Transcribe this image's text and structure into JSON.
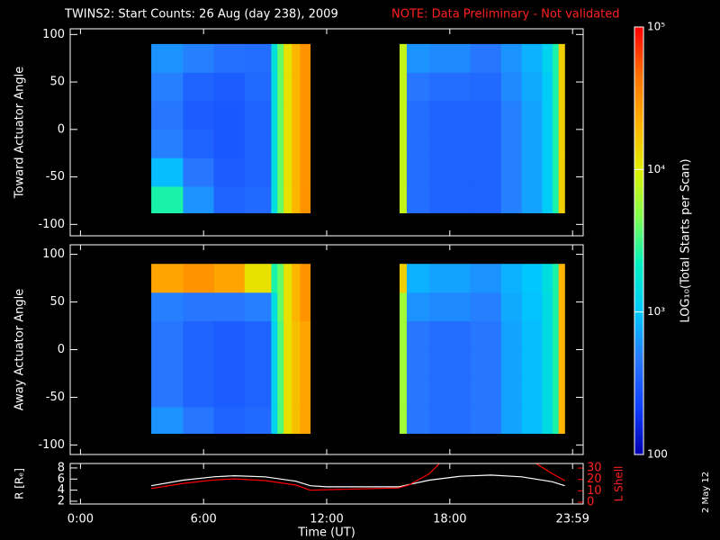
{
  "title": "TWINS2: Start Counts: 26 Aug (day 238), 2009",
  "note": "NOTE: Data Preliminary - Not validated",
  "date_stamp": "2 May 12",
  "xlabel": "Time (UT)",
  "colorbar": {
    "label": "LOG₁₀(Total Starts per Scan)",
    "zlim": [
      100,
      100000
    ],
    "log": true,
    "zticks": [
      {
        "value": 100000,
        "label": "10⁵"
      },
      {
        "value": 10000,
        "label": "10⁴"
      },
      {
        "value": 1000,
        "label": "10³"
      },
      100
    ],
    "colors": [
      "#0000b0",
      "#1040ff",
      "#2878ff",
      "#00c8ff",
      "#00f0c0",
      "#80ff50",
      "#e0f000",
      "#ffb000",
      "#ff7000",
      "#ff0000"
    ]
  },
  "chart_data": [
    {
      "type": "heatmap",
      "ylabel": "Toward Actuator Angle",
      "xlim": [
        -0.5,
        24.5
      ],
      "xticks": [
        {
          "value": 0,
          "label": "0:00"
        },
        {
          "value": 6,
          "label": "6:00"
        },
        {
          "value": 12,
          "label": "12:00"
        },
        {
          "value": 18,
          "label": "18:00"
        },
        {
          "value": 23.983,
          "label": "23:59"
        }
      ],
      "ylim": [
        -112,
        106
      ],
      "yticks": [
        -100,
        -50,
        0,
        50,
        100
      ],
      "x_bins": [
        3.45,
        5,
        6.5,
        8,
        9.3,
        9.6,
        9.9,
        10.3,
        10.7,
        11.2,
        15.55,
        15.9,
        17,
        19,
        20.5,
        21.5,
        22.5,
        23,
        23.3,
        23.6
      ],
      "y_bins": [
        -88,
        -60,
        -30,
        0,
        30,
        60,
        90
      ],
      "values": [
        [
          2500,
          600,
          350,
          380,
          1500,
          4000,
          12000,
          20000,
          30000,
          null,
          8000,
          400,
          350,
          350,
          500,
          700,
          1100,
          2500,
          15000
        ],
        [
          900,
          450,
          320,
          350,
          1500,
          4000,
          12000,
          20000,
          30000,
          null,
          8000,
          400,
          350,
          350,
          500,
          700,
          1100,
          2500,
          15000
        ],
        [
          500,
          350,
          300,
          350,
          1500,
          4000,
          12000,
          20000,
          30000,
          null,
          8000,
          400,
          350,
          350,
          500,
          700,
          1100,
          2500,
          15000
        ],
        [
          450,
          320,
          300,
          350,
          1500,
          4000,
          12000,
          20000,
          30000,
          null,
          8000,
          400,
          350,
          350,
          500,
          700,
          1100,
          2500,
          15000
        ],
        [
          500,
          350,
          320,
          380,
          1500,
          4000,
          12000,
          20000,
          30000,
          null,
          8000,
          450,
          400,
          380,
          550,
          750,
          1100,
          2500,
          15000
        ],
        [
          600,
          500,
          420,
          400,
          1600,
          4000,
          12000,
          20000,
          30000,
          null,
          8000,
          600,
          550,
          450,
          600,
          800,
          1200,
          2500,
          15000
        ]
      ]
    },
    {
      "type": "heatmap",
      "ylabel": "Away Actuator Angle",
      "xlim": [
        -0.5,
        24.5
      ],
      "xticks": [
        {
          "value": 0,
          "label": "0:00"
        },
        {
          "value": 6,
          "label": "6:00"
        },
        {
          "value": 12,
          "label": "12:00"
        },
        {
          "value": 18,
          "label": "18:00"
        },
        {
          "value": 23.983,
          "label": "23:59"
        }
      ],
      "ylim": [
        -110,
        110
      ],
      "yticks": [
        -100,
        -50,
        0,
        50,
        100
      ],
      "x_bins": [
        3.45,
        5,
        6.5,
        8,
        9.3,
        9.6,
        9.9,
        10.3,
        10.7,
        11.2,
        15.55,
        15.9,
        17,
        19,
        20.5,
        21.5,
        22.5,
        23,
        23.3,
        23.6
      ],
      "y_bins": [
        -88,
        -60,
        -30,
        0,
        30,
        60,
        90
      ],
      "values": [
        [
          600,
          450,
          350,
          380,
          1200,
          3500,
          12000,
          18000,
          25000,
          null,
          6000,
          450,
          400,
          450,
          700,
          900,
          1400,
          2500,
          20000
        ],
        [
          450,
          350,
          320,
          350,
          1200,
          3500,
          12000,
          18000,
          25000,
          null,
          6000,
          450,
          400,
          450,
          700,
          900,
          1400,
          2500,
          20000
        ],
        [
          450,
          350,
          320,
          350,
          1200,
          3500,
          12000,
          18000,
          25000,
          null,
          6000,
          450,
          400,
          450,
          700,
          900,
          1400,
          2500,
          20000
        ],
        [
          450,
          350,
          320,
          350,
          1200,
          3500,
          12000,
          18000,
          25000,
          null,
          6000,
          450,
          400,
          450,
          700,
          900,
          1400,
          2500,
          20000
        ],
        [
          500,
          450,
          450,
          500,
          1500,
          4000,
          12000,
          20000,
          30000,
          null,
          6000,
          600,
          550,
          500,
          750,
          950,
          1400,
          2500,
          20000
        ],
        [
          25000,
          30000,
          25000,
          12000,
          2500,
          4000,
          12000,
          20000,
          30000,
          null,
          15000,
          800,
          700,
          600,
          800,
          1000,
          1500,
          2500,
          20000
        ]
      ]
    },
    {
      "type": "line",
      "ylabel": "R [Rₑ]",
      "y2label": "L Shell",
      "xlim": [
        -0.5,
        24.5
      ],
      "xticks": [
        {
          "value": 0,
          "label": "0:00"
        },
        {
          "value": 6,
          "label": "6:00"
        },
        {
          "value": 12,
          "label": "12:00"
        },
        {
          "value": 18,
          "label": "18:00"
        },
        {
          "value": 23.983,
          "label": "23:59"
        }
      ],
      "ylim": [
        1.5,
        8.8
      ],
      "yticks": [
        2,
        4,
        6,
        8
      ],
      "y2lim": [
        -1.6,
        34
      ],
      "y2ticks": [
        0,
        10,
        20,
        30
      ],
      "series": [
        {
          "color": "#ffffff",
          "x": [
            3.45,
            5,
            6.5,
            7.5,
            9,
            10.5,
            11.2,
            12,
            15.5,
            16,
            17,
            18.5,
            20,
            21.5,
            23,
            23.6
          ],
          "values": [
            4.8,
            5.8,
            6.4,
            6.6,
            6.4,
            5.6,
            4.8,
            4.6,
            4.6,
            5.0,
            5.8,
            6.5,
            6.7,
            6.4,
            5.5,
            4.8
          ]
        },
        {
          "color": "#ff0000",
          "axis": "y2",
          "x": [
            3.45,
            5,
            6.5,
            7.5,
            9,
            10.5,
            11.2,
            12,
            15.5,
            16,
            17,
            17.5,
            null,
            22.2,
            23,
            23.6
          ],
          "values": [
            12,
            16.5,
            19.5,
            20.5,
            19,
            15,
            10.5,
            11,
            12.5,
            15,
            25,
            34,
            null,
            34,
            25,
            19
          ]
        }
      ]
    }
  ]
}
